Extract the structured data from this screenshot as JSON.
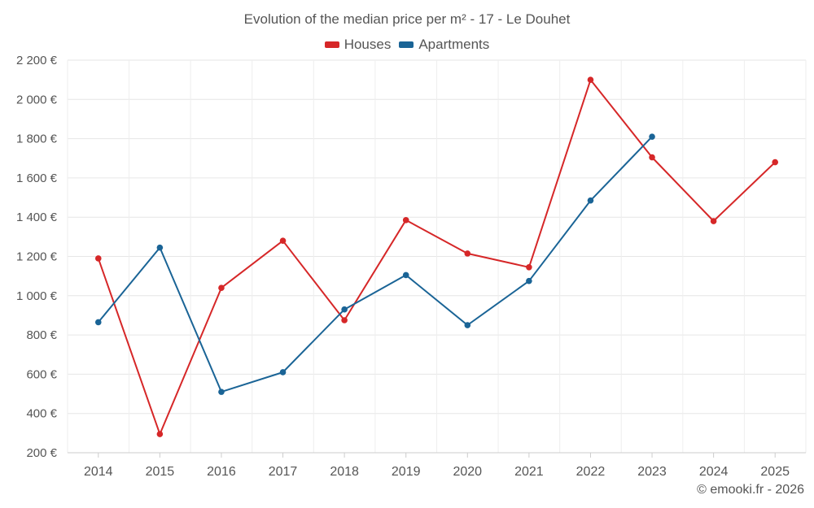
{
  "chart_data": {
    "type": "line",
    "title": "Evolution of the median price per m² - 17 - Le Douhet",
    "categories": [
      "2014",
      "2015",
      "2016",
      "2017",
      "2018",
      "2019",
      "2020",
      "2021",
      "2022",
      "2023",
      "2024",
      "2025"
    ],
    "series": [
      {
        "name": "Houses",
        "color": "#d62728",
        "values": [
          1190,
          295,
          1040,
          1280,
          875,
          1385,
          1215,
          1145,
          2100,
          1705,
          1380,
          1680
        ]
      },
      {
        "name": "Apartments",
        "color": "#1a6496",
        "values": [
          865,
          1245,
          510,
          610,
          930,
          1105,
          850,
          1075,
          1485,
          1810,
          null,
          null
        ]
      }
    ],
    "y_ticks": [
      200,
      400,
      600,
      800,
      1000,
      1200,
      1400,
      1600,
      1800,
      2000,
      2200
    ],
    "y_tick_labels": [
      "200 €",
      "400 €",
      "600 €",
      "800 €",
      "1 000 €",
      "1 200 €",
      "1 400 €",
      "1 600 €",
      "1 800 €",
      "2 000 €",
      "2 200 €"
    ],
    "ylim": [
      200,
      2200
    ],
    "xlabel": "",
    "ylabel": "",
    "grid": true,
    "legend_position": "top-center"
  },
  "legend": [
    {
      "label": "Houses",
      "color": "#d62728"
    },
    {
      "label": "Apartments",
      "color": "#1a6496"
    }
  ],
  "credit": "© emooki.fr - 2026"
}
